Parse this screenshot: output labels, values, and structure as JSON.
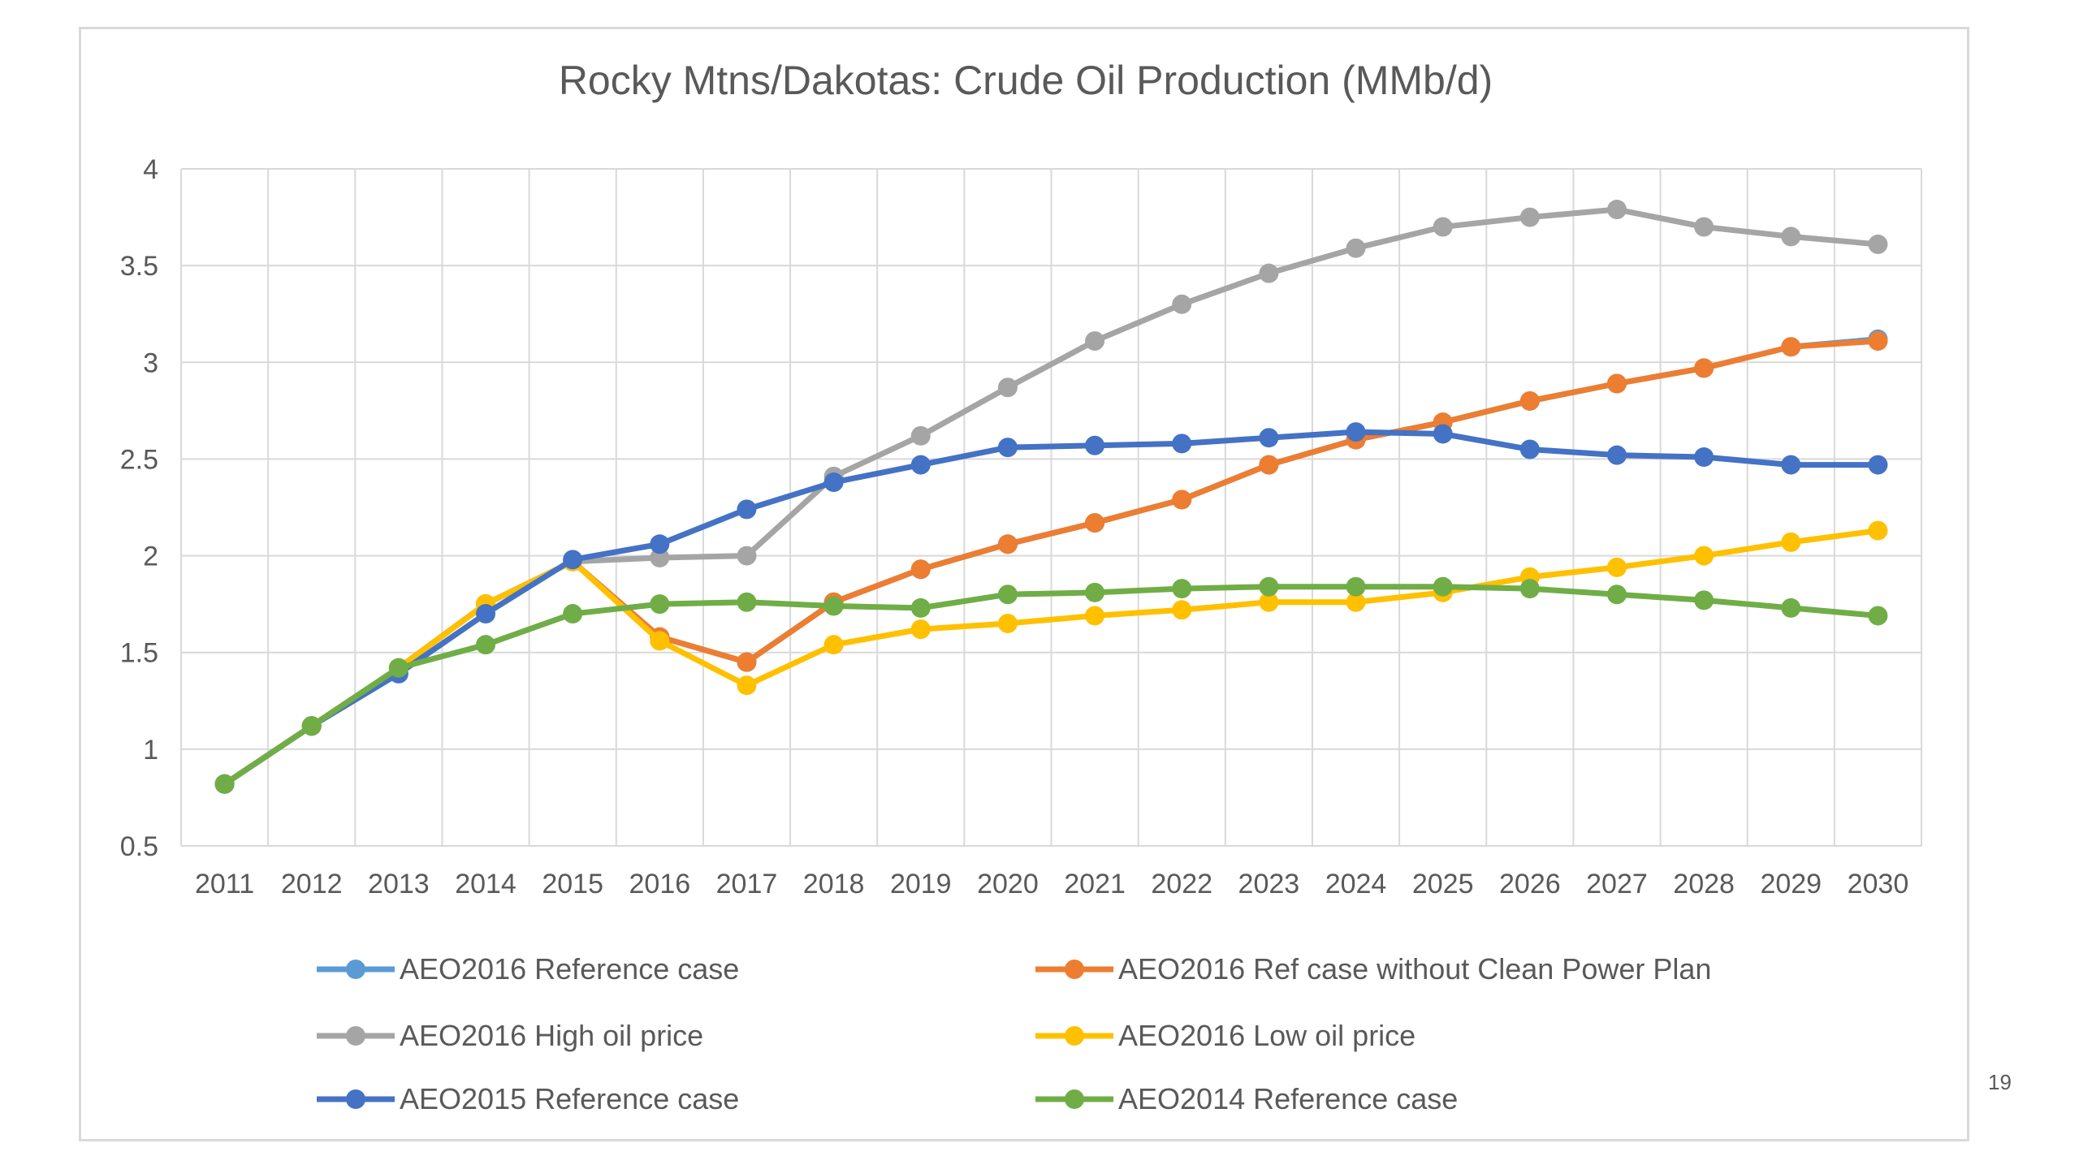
{
  "page": {
    "number": "19"
  },
  "chart_data": {
    "type": "line",
    "title": "Rocky Mtns/Dakotas: Crude Oil Production (MMb/d)",
    "xlabel": "",
    "ylabel": "",
    "ylim": [
      0.5,
      4
    ],
    "yticks": [
      "0.5",
      "1",
      "1.5",
      "2",
      "2.5",
      "3",
      "3.5",
      "4"
    ],
    "grid": true,
    "legend_position": "bottom",
    "categories": [
      "2011",
      "2012",
      "2013",
      "2014",
      "2015",
      "2016",
      "2017",
      "2018",
      "2019",
      "2020",
      "2021",
      "2022",
      "2023",
      "2024",
      "2025",
      "2026",
      "2027",
      "2028",
      "2029",
      "2030"
    ],
    "series": [
      {
        "name": "AEO2016 Reference case",
        "color": "#5b9bd5",
        "values": [
          0.82,
          1.12,
          1.42,
          1.75,
          1.97,
          1.58,
          1.45,
          1.76,
          1.93,
          2.06,
          2.17,
          2.29,
          2.47,
          2.6,
          2.69,
          2.8,
          2.89,
          2.97,
          3.08,
          3.12
        ]
      },
      {
        "name": "AEO2016 Ref case without Clean Power Plan",
        "color": "#ed7d31",
        "values": [
          0.82,
          1.12,
          1.42,
          1.75,
          1.97,
          1.58,
          1.45,
          1.76,
          1.93,
          2.06,
          2.17,
          2.29,
          2.47,
          2.6,
          2.69,
          2.8,
          2.89,
          2.97,
          3.08,
          3.11
        ]
      },
      {
        "name": "AEO2016 High oil price",
        "color": "#a5a5a5",
        "values": [
          0.82,
          1.12,
          1.42,
          1.75,
          1.97,
          1.99,
          2.0,
          2.41,
          2.62,
          2.87,
          3.11,
          3.3,
          3.46,
          3.59,
          3.7,
          3.75,
          3.79,
          3.7,
          3.65,
          3.61
        ]
      },
      {
        "name": "AEO2016 Low oil price",
        "color": "#ffc000",
        "values": [
          0.82,
          1.12,
          1.42,
          1.75,
          1.97,
          1.56,
          1.33,
          1.54,
          1.62,
          1.65,
          1.69,
          1.72,
          1.76,
          1.76,
          1.81,
          1.89,
          1.94,
          2.0,
          2.07,
          2.13
        ]
      },
      {
        "name": "AEO2015 Reference case",
        "color": "#4472c4",
        "values": [
          0.82,
          1.12,
          1.39,
          1.7,
          1.98,
          2.06,
          2.24,
          2.38,
          2.47,
          2.56,
          2.57,
          2.58,
          2.61,
          2.64,
          2.63,
          2.55,
          2.52,
          2.51,
          2.47,
          2.47
        ]
      },
      {
        "name": "AEO2014 Reference case",
        "color": "#70ad47",
        "values": [
          0.82,
          1.12,
          1.42,
          1.54,
          1.7,
          1.75,
          1.76,
          1.74,
          1.73,
          1.8,
          1.81,
          1.83,
          1.84,
          1.84,
          1.84,
          1.83,
          1.8,
          1.77,
          1.73,
          1.69
        ]
      }
    ]
  }
}
